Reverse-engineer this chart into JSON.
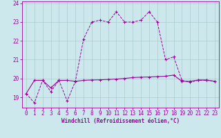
{
  "xlabel": "Windchill (Refroidissement éolien,°C)",
  "bg_color": "#cce8ec",
  "grid_color": "#aacccc",
  "line_color": "#990099",
  "x_values": [
    0,
    1,
    2,
    3,
    4,
    5,
    6,
    7,
    8,
    9,
    10,
    11,
    12,
    13,
    14,
    15,
    16,
    17,
    18,
    19,
    20,
    21,
    22,
    23
  ],
  "temp_line": [
    19.2,
    18.7,
    19.9,
    19.3,
    19.9,
    18.8,
    19.85,
    22.1,
    23.0,
    23.1,
    23.0,
    23.55,
    23.0,
    23.0,
    23.1,
    23.55,
    23.0,
    21.0,
    21.15,
    19.9,
    19.8,
    19.9,
    19.9,
    19.85
  ],
  "windchill_line": [
    19.2,
    19.9,
    19.9,
    19.5,
    19.9,
    19.9,
    19.85,
    19.9,
    19.92,
    19.93,
    19.95,
    19.97,
    20.0,
    20.05,
    20.07,
    20.08,
    20.1,
    20.12,
    20.18,
    19.85,
    19.85,
    19.92,
    19.92,
    19.85
  ],
  "xlim_min": -0.5,
  "xlim_max": 23.5,
  "ylim_min": 18.45,
  "ylim_max": 24.1,
  "yticks": [
    19,
    20,
    21,
    22,
    23,
    24
  ]
}
